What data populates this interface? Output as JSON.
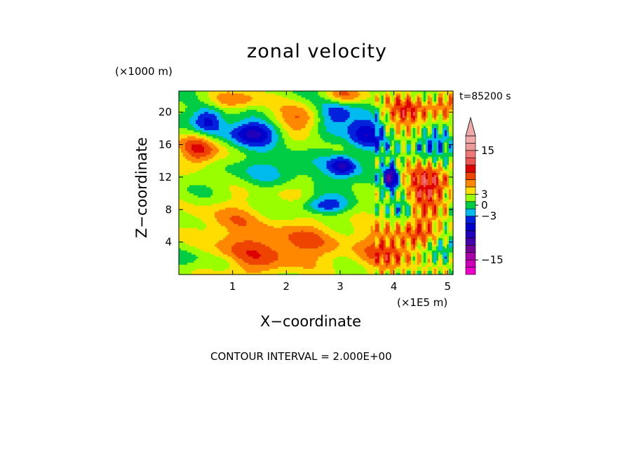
{
  "chart_data": {
    "type": "heatmap",
    "title": "zonal velocity",
    "xlabel": "X−coordinate",
    "ylabel": "Z−coordinate",
    "x_units": "(×1E5 m)",
    "y_units": "(×1000 m)",
    "timestamp": "t=85200 s",
    "footer": "CONTOUR INTERVAL = 2.000E+00",
    "xlim": [
      0,
      5.1
    ],
    "ylim": [
      0,
      22.6
    ],
    "x_ticks": [
      "1",
      "2",
      "3",
      "4",
      "5"
    ],
    "y_ticks": [
      "4",
      "8",
      "12",
      "16",
      "20"
    ],
    "contour_interval": 2,
    "colorbar": {
      "levels": [
        -19,
        -17,
        -15,
        -13,
        -11,
        -9,
        -7,
        -5,
        -3,
        -1,
        1,
        3,
        5,
        7,
        9,
        11,
        13,
        15,
        17,
        19
      ],
      "colors": [
        "#ee00cc",
        "#cc00bb",
        "#aa00aa",
        "#770099",
        "#4400aa",
        "#2200bb",
        "#0000cc",
        "#0022dd",
        "#00bbee",
        "#00cc44",
        "#99ff00",
        "#ffdd00",
        "#ff8800",
        "#ee4400",
        "#dd0000",
        "#ee5555",
        "#ee7777",
        "#ee9999",
        "#f0aaaa"
      ],
      "labels": [
        "15",
        "3",
        "0",
        "−3",
        "−15"
      ],
      "label_values": [
        15,
        3,
        0,
        -3,
        -15
      ]
    },
    "grid": false,
    "legend": "right"
  }
}
